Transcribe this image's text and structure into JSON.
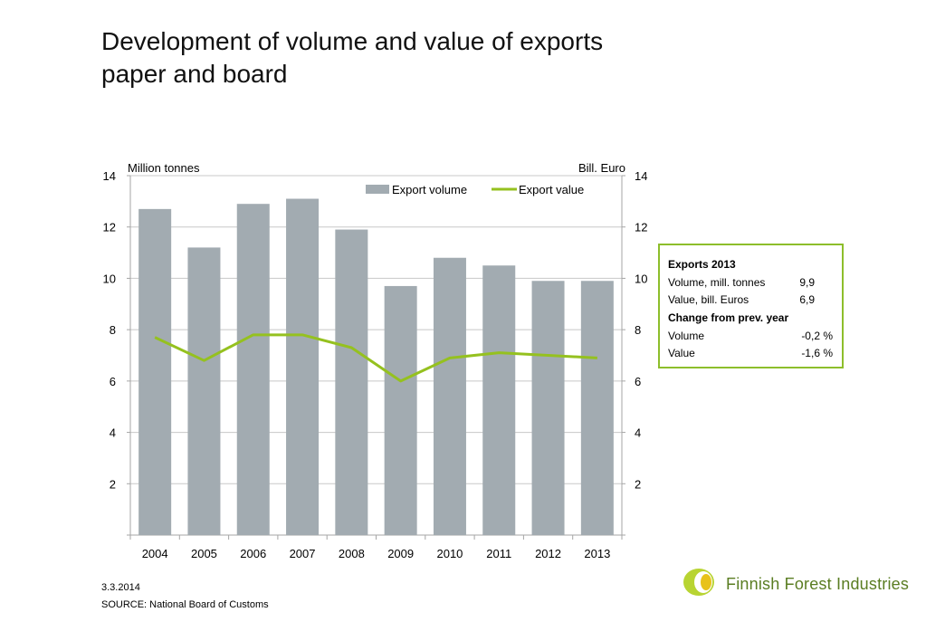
{
  "title_lines": [
    "Development of volume and value of exports",
    "paper and board"
  ],
  "chart_data": {
    "type": "bar+line",
    "categories": [
      "2004",
      "2005",
      "2006",
      "2007",
      "2008",
      "2009",
      "2010",
      "2011",
      "2012",
      "2013"
    ],
    "series": [
      {
        "name": "Export volume",
        "type": "bar",
        "axis": "left",
        "color": "#A2ABB1",
        "values": [
          12.7,
          11.2,
          12.9,
          13.1,
          11.9,
          9.7,
          10.8,
          10.5,
          9.9,
          9.9
        ]
      },
      {
        "name": "Export value",
        "type": "line",
        "axis": "right",
        "color": "#95C11F",
        "values": [
          7.7,
          6.8,
          7.8,
          7.8,
          7.3,
          6.0,
          6.9,
          7.1,
          7.0,
          6.9
        ]
      }
    ],
    "ylabel_left": "Million tonnes",
    "ylabel_right": "Bill. Euro",
    "ylim": [
      0,
      14
    ],
    "yticks": [
      2,
      4,
      6,
      8,
      10,
      12,
      14
    ],
    "grid": true,
    "legend_position": "top-right"
  },
  "summary_table": {
    "rows": [
      {
        "label": "Exports 2013",
        "value": "",
        "bold": true
      },
      {
        "label": "Volume, mill. tonnes",
        "value": "9,9",
        "bold": false
      },
      {
        "label": "Value, bill. Euros",
        "value": "6,9",
        "bold": false
      },
      {
        "label": "Change from prev. year",
        "value": "",
        "bold": true
      },
      {
        "label": "Volume",
        "value": "-0,2 %",
        "bold": false
      },
      {
        "label": "Value",
        "value": "-1,6 %",
        "bold": false
      }
    ],
    "border_color": "#8DBE2B"
  },
  "footer": {
    "date": "3.3.2014",
    "source": "SOURCE: National Board of Customs"
  },
  "logo": {
    "text": "Finnish Forest Industries",
    "text_color": "#5a7d22",
    "icon": "leaf-logo-icon"
  }
}
